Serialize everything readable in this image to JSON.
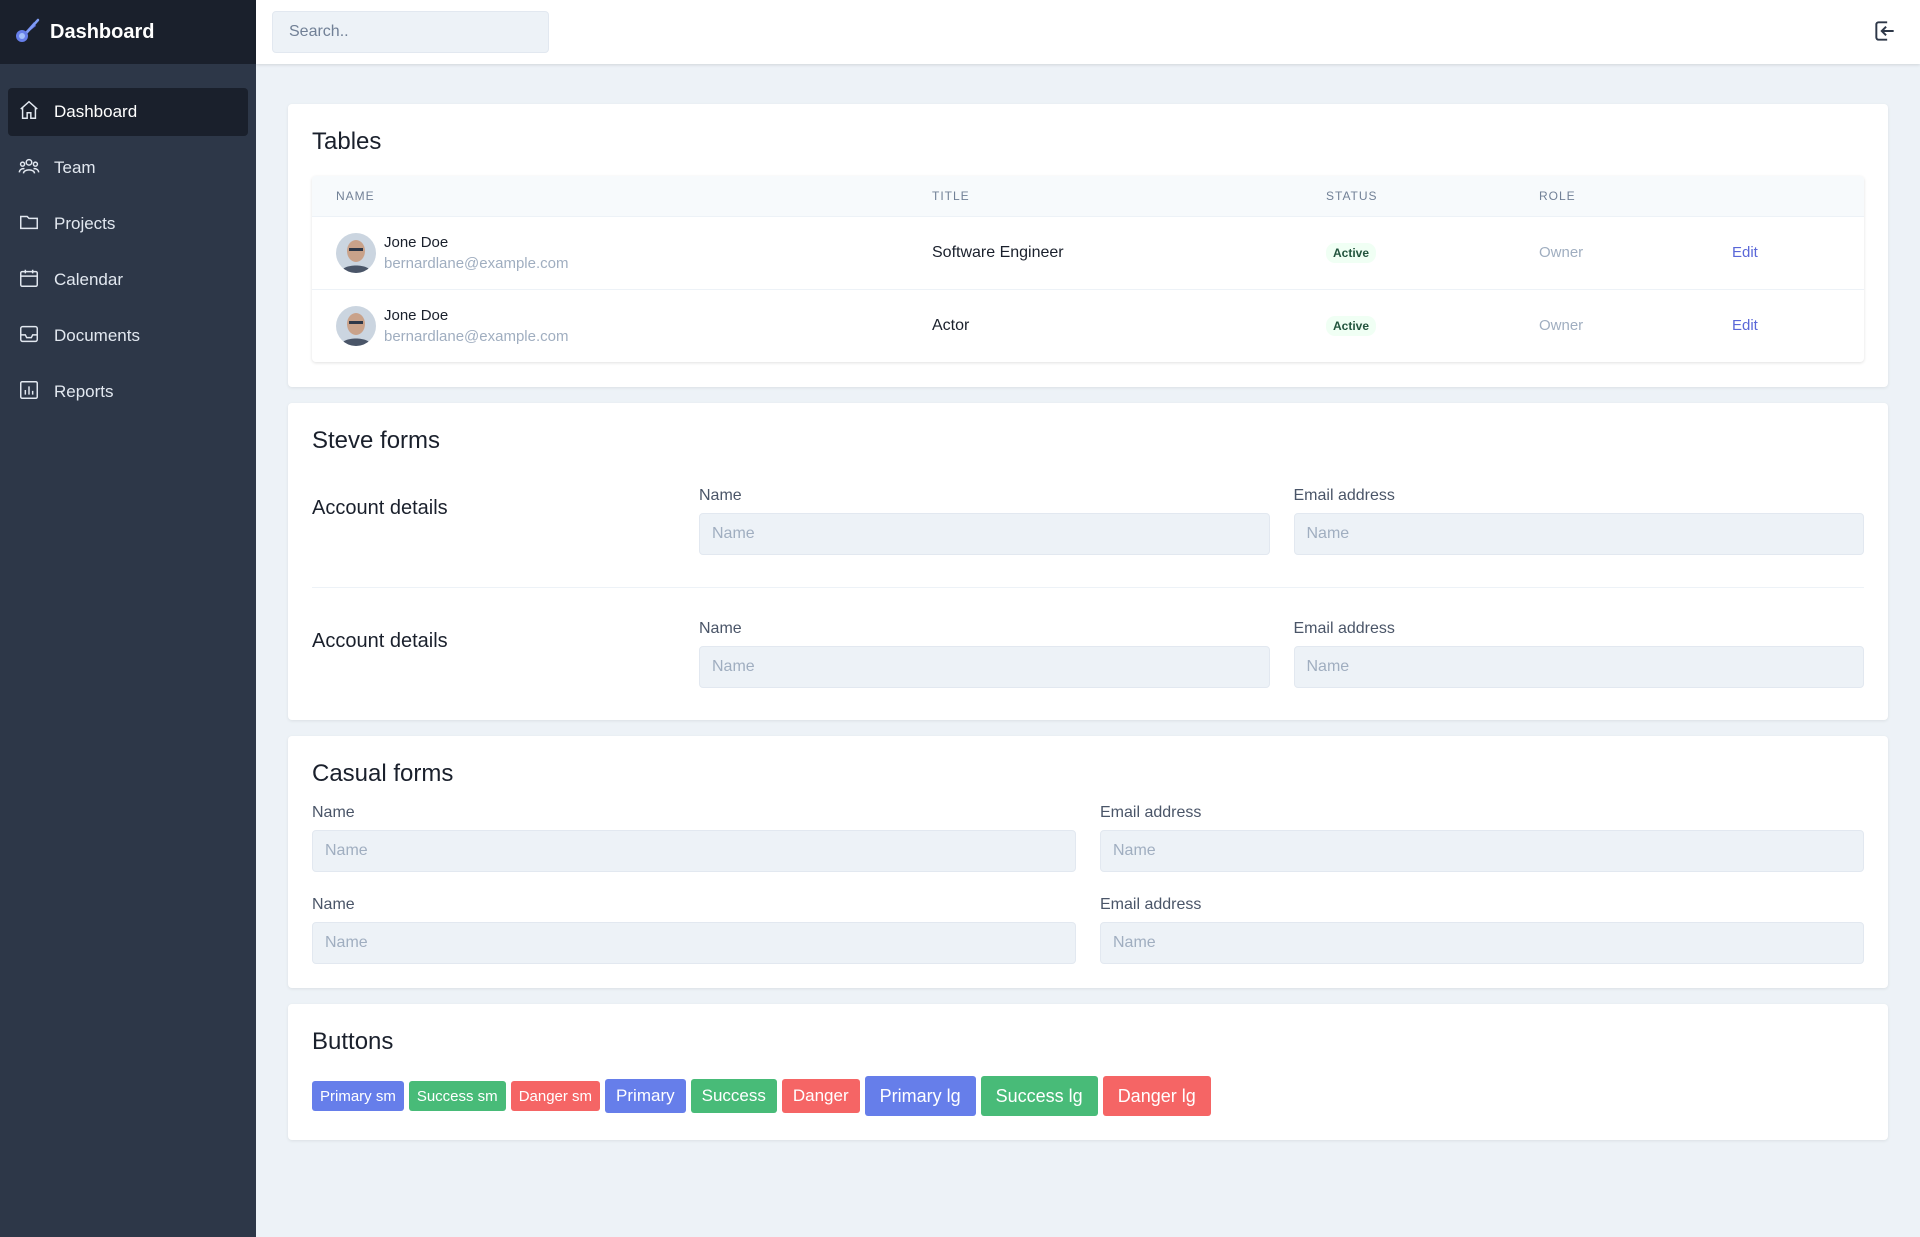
{
  "brand": {
    "name": "Dashboard",
    "icon": "comet-icon",
    "accent": "#667eea"
  },
  "sidebar": {
    "items": [
      {
        "label": "Dashboard",
        "icon": "home-icon",
        "active": true
      },
      {
        "label": "Team",
        "icon": "users-icon"
      },
      {
        "label": "Projects",
        "icon": "folder-icon"
      },
      {
        "label": "Calendar",
        "icon": "calendar-icon"
      },
      {
        "label": "Documents",
        "icon": "inbox-icon"
      },
      {
        "label": "Reports",
        "icon": "chart-icon"
      }
    ]
  },
  "topbar": {
    "search_placeholder": "Search..",
    "logout_icon": "logout-icon"
  },
  "tables": {
    "title": "Tables",
    "columns": [
      "NAME",
      "TITLE",
      "STATUS",
      "ROLE",
      ""
    ],
    "rows": [
      {
        "name": "Jone Doe",
        "email": "bernardlane@example.com",
        "title": "Software Engineer",
        "status": "Active",
        "role": "Owner",
        "action": "Edit"
      },
      {
        "name": "Jone Doe",
        "email": "bernardlane@example.com",
        "title": "Actor",
        "status": "Active",
        "role": "Owner",
        "action": "Edit"
      }
    ]
  },
  "steve_forms": {
    "title": "Steve forms",
    "sections": [
      {
        "title": "Account details",
        "name_label": "Name",
        "name_placeholder": "Name",
        "email_label": "Email address",
        "email_placeholder": "Name"
      },
      {
        "title": "Account details",
        "name_label": "Name",
        "name_placeholder": "Name",
        "email_label": "Email address",
        "email_placeholder": "Name"
      }
    ]
  },
  "casual_forms": {
    "title": "Casual forms",
    "fields": [
      {
        "label": "Name",
        "placeholder": "Name"
      },
      {
        "label": "Email address",
        "placeholder": "Name"
      },
      {
        "label": "Name",
        "placeholder": "Name"
      },
      {
        "label": "Email address",
        "placeholder": "Name"
      }
    ]
  },
  "buttons": {
    "title": "Buttons",
    "items": [
      {
        "label": "Primary sm",
        "color": "#667eea"
      },
      {
        "label": "Success sm",
        "color": "#48bb78"
      },
      {
        "label": "Danger sm",
        "color": "#f56565"
      },
      {
        "label": "Primary",
        "color": "#667eea"
      },
      {
        "label": "Success",
        "color": "#48bb78"
      },
      {
        "label": "Danger",
        "color": "#f56565"
      },
      {
        "label": "Primary lg",
        "color": "#667eea"
      },
      {
        "label": "Success lg",
        "color": "#48bb78"
      },
      {
        "label": "Danger lg",
        "color": "#f56565"
      }
    ]
  }
}
